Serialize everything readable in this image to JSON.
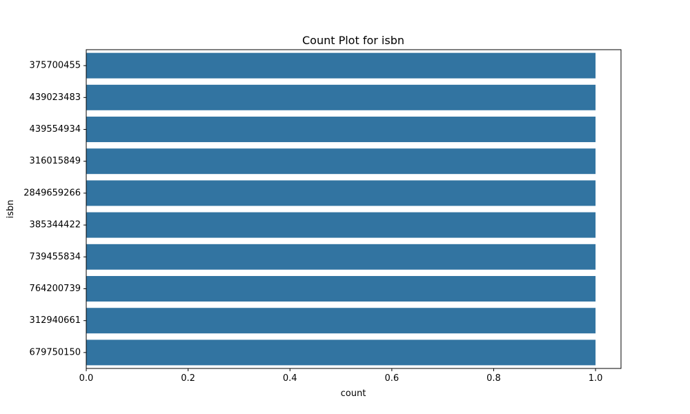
{
  "chart_data": {
    "type": "bar",
    "orientation": "horizontal",
    "title": "Count Plot for isbn",
    "xlabel": "count",
    "ylabel": "isbn",
    "categories": [
      "375700455",
      "439023483",
      "439554934",
      "316015849",
      "2849659266",
      "385344422",
      "739455834",
      "764200739",
      "312940661",
      "679750150"
    ],
    "values": [
      1,
      1,
      1,
      1,
      1,
      1,
      1,
      1,
      1,
      1
    ],
    "xlim": [
      0,
      1.05
    ],
    "xticks": [
      "0.0",
      "0.2",
      "0.4",
      "0.6",
      "0.8",
      "1.0"
    ],
    "grid": false,
    "bar_color": "#3274a1"
  }
}
